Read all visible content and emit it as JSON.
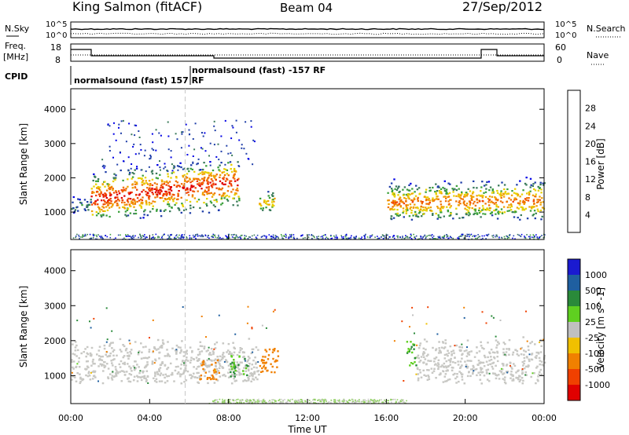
{
  "header": {
    "station": "King Salmon (fitACF)",
    "beam": "Beam 04",
    "date": "27/Sep/2012"
  },
  "panels": {
    "nsky": {
      "label": "N.Sky",
      "ticks": [
        "10^5",
        "10^0"
      ],
      "right_label": "N.Search",
      "right_ticks": [
        "10^5",
        "10^0"
      ]
    },
    "freq": {
      "label1": "Freq.",
      "label2": "[MHz]",
      "ticks": [
        "18",
        "8"
      ],
      "right_label": "Nave",
      "right_ticks": [
        "60",
        "0"
      ]
    },
    "cpid": {
      "label": "CPID",
      "entries": [
        "normalsound (fast) 157 RF",
        "normalsound (fast) -157 RF"
      ]
    }
  },
  "x_axis": {
    "label": "Time UT",
    "ticks": [
      "00:00",
      "04:00",
      "08:00",
      "12:00",
      "16:00",
      "20:00",
      "00:00"
    ]
  },
  "colors": {
    "power": [
      "#0000e6",
      "#1f3ea8",
      "#3a7a5a",
      "#3aa03a",
      "#e8d000",
      "#f0a000",
      "#f07000",
      "#f04000",
      "#e00000"
    ],
    "velocity": [
      "#1a1ad0",
      "#1f5fa0",
      "#2a8a3a",
      "#5fd020",
      "#c0c0c0",
      "#f0c000",
      "#f08000",
      "#f04000",
      "#e00000"
    ],
    "gray": "#c8c8c4"
  },
  "chart_data": [
    {
      "type": "heatmap",
      "title": "Power",
      "xlabel": "Time UT",
      "ylabel": "Slant Range [km]",
      "x_range_hours": [
        0,
        24
      ],
      "ylim": [
        200,
        4600
      ],
      "y_ticks": [
        1000,
        2000,
        3000,
        4000
      ],
      "colorbar": {
        "label": "Power [dB]",
        "ticks": [
          4,
          8,
          12,
          16,
          20,
          24,
          28
        ],
        "range": [
          0,
          32
        ]
      },
      "echo_regions": [
        {
          "t_start": 0.0,
          "t_end": 1.0,
          "r_low": 1000,
          "r_high": 1600,
          "peak_db": 10
        },
        {
          "t_start": 1.0,
          "t_end": 8.5,
          "r_low": 800,
          "r_high": 2500,
          "peak_db": 30
        },
        {
          "t_start": 9.5,
          "t_end": 10.3,
          "r_low": 1000,
          "r_high": 1800,
          "peak_db": 20
        },
        {
          "t_start": 16.0,
          "t_end": 24.0,
          "r_low": 800,
          "r_high": 2200,
          "peak_db": 24
        }
      ]
    },
    {
      "type": "heatmap",
      "title": "Velocity",
      "xlabel": "Time UT",
      "ylabel": "Slant Range [km]",
      "x_range_hours": [
        0,
        24
      ],
      "ylim": [
        200,
        4600
      ],
      "y_ticks": [
        1000,
        2000,
        3000,
        4000
      ],
      "colorbar": {
        "label": "Velocity [m s^-1]",
        "ticks": [
          1000,
          500,
          100,
          25,
          -25,
          -100,
          -500,
          -1000
        ]
      },
      "ground_scatter_regions": [
        {
          "t_start": 0.0,
          "t_end": 9.5,
          "r_low": 800,
          "r_high": 2200
        },
        {
          "t_start": 17.5,
          "t_end": 24.0,
          "r_low": 800,
          "r_high": 2200
        }
      ],
      "notable_velocity_patches": [
        {
          "t_start": 6.5,
          "t_end": 7.5,
          "r_low": 900,
          "r_high": 1500,
          "velocity_ms": -200
        },
        {
          "t_start": 9.5,
          "t_end": 10.5,
          "r_low": 1000,
          "r_high": 1800,
          "velocity_ms": -200
        },
        {
          "t_start": 8.0,
          "t_end": 9.0,
          "r_low": 1000,
          "r_high": 1600,
          "velocity_ms": 100
        },
        {
          "t_start": 17.0,
          "t_end": 17.5,
          "r_low": 1300,
          "r_high": 2100,
          "velocity_ms": 100
        }
      ]
    }
  ]
}
